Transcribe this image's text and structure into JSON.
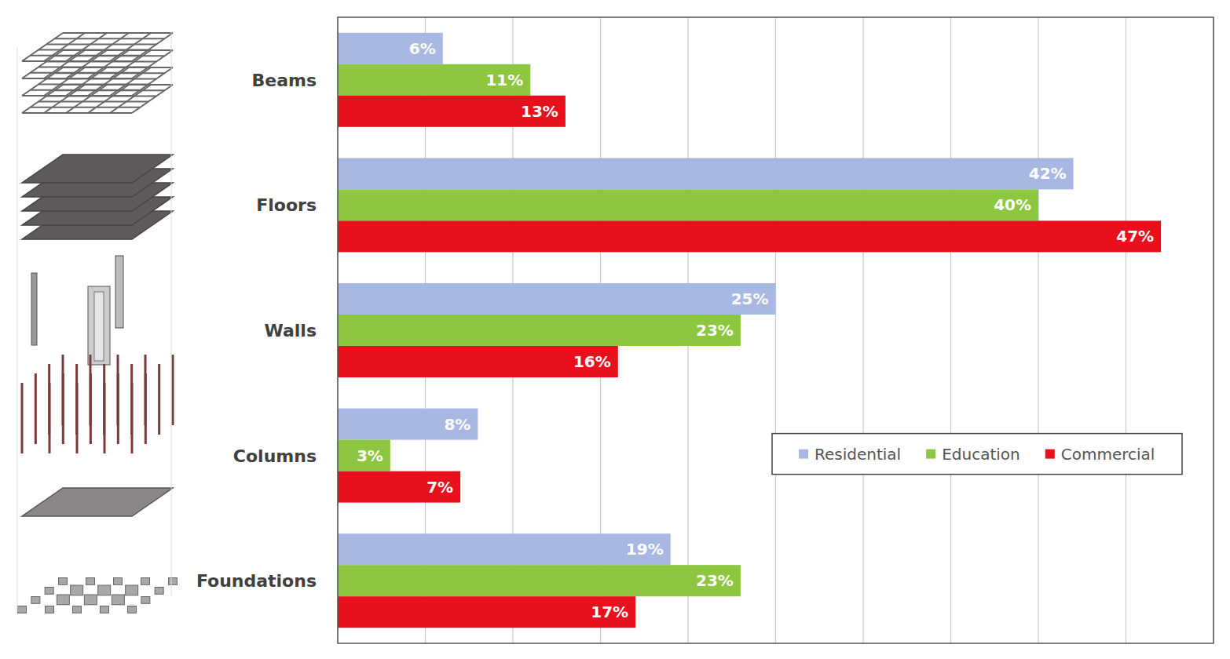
{
  "chart_data": {
    "type": "bar",
    "orientation": "horizontal",
    "categories": [
      "Beams",
      "Floors",
      "Walls",
      "Columns",
      "Foundations"
    ],
    "series": [
      {
        "name": "Residential",
        "color": "#a9b8e3",
        "values": [
          6,
          42,
          25,
          8,
          19
        ],
        "value_labels": [
          "6%",
          "42%",
          "25%",
          "8%",
          "19%"
        ]
      },
      {
        "name": "Education",
        "color": "#8dc63f",
        "values": [
          11,
          40,
          23,
          3,
          23
        ],
        "value_labels": [
          "11%",
          "40%",
          "23%",
          "3%",
          "23%"
        ]
      },
      {
        "name": "Commercial",
        "color": "#e8101c",
        "values": [
          13,
          47,
          16,
          7,
          17
        ],
        "value_labels": [
          "13%",
          "47%",
          "16%",
          "7%",
          "17%"
        ]
      }
    ],
    "xlim": [
      0,
      50
    ],
    "xticks": [
      0,
      5,
      10,
      15,
      20,
      25,
      30,
      35,
      40,
      45,
      50
    ],
    "grid": true,
    "legend": "right",
    "data_labels": true,
    "tick_labels": false
  }
}
